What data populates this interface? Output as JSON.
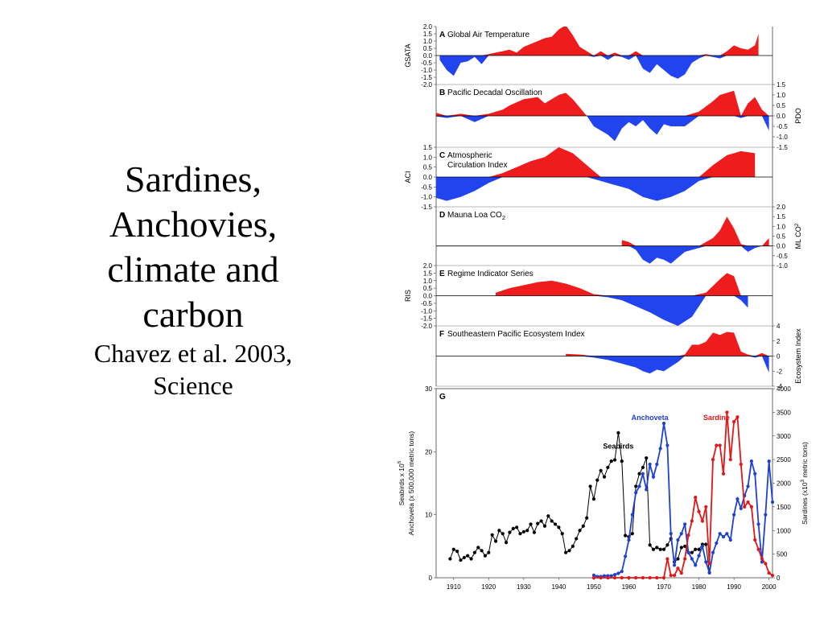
{
  "slide": {
    "title_lines": [
      "Sardines,",
      "Anchovies,",
      "climate and",
      "carbon"
    ],
    "citation_lines": [
      "Chavez et al. 2003,",
      "Science"
    ]
  },
  "colors": {
    "positive": "#ee1c1c",
    "negative": "#2244ee",
    "seabirds": "#000000",
    "anchoveta": "#2040d0",
    "sardine": "#e01818"
  },
  "chart_data": [
    {
      "type": "area",
      "panel": "A",
      "title": "Global Air Temperature",
      "ylabel": "GSATA",
      "ylim": [
        -2.0,
        2.0
      ],
      "yticks": [
        "2.0",
        "1.5",
        "1.0",
        "0.5",
        "0.0",
        "-0.5",
        "-1.0",
        "-1.5",
        "-2.0"
      ],
      "axis_side": "left",
      "x": [
        1906,
        1908,
        1910,
        1912,
        1914,
        1916,
        1918,
        1920,
        1922,
        1924,
        1926,
        1928,
        1930,
        1932,
        1934,
        1936,
        1938,
        1940,
        1942,
        1944,
        1946,
        1948,
        1950,
        1952,
        1954,
        1956,
        1958,
        1960,
        1962,
        1964,
        1966,
        1968,
        1970,
        1972,
        1974,
        1976,
        1978,
        1980,
        1982,
        1984,
        1986,
        1988,
        1990,
        1992,
        1994,
        1996,
        1997
      ],
      "values": [
        -0.3,
        -1.0,
        -1.4,
        -0.5,
        -0.4,
        -0.1,
        -0.6,
        0.1,
        0.2,
        0.3,
        0.4,
        0.2,
        0.6,
        0.8,
        1.0,
        1.2,
        1.3,
        1.8,
        2.1,
        1.4,
        0.6,
        0.3,
        -0.1,
        0.3,
        -0.3,
        0.2,
        -0.1,
        -0.3,
        0.3,
        -0.9,
        -1.2,
        -0.6,
        -1.0,
        -1.4,
        -1.6,
        -1.3,
        -0.5,
        -0.2,
        0.1,
        -0.1,
        -0.2,
        0.3,
        0.7,
        0.5,
        0.4,
        0.7,
        1.5
      ]
    },
    {
      "type": "area",
      "panel": "B",
      "title": "Pacific Decadal Oscillation",
      "ylabel": "PDO",
      "ylim": [
        -1.5,
        1.5
      ],
      "yticks": [
        "1.5",
        "1.0",
        "0.5",
        "0.0",
        "-0.5",
        "-1.0",
        "-1.5"
      ],
      "axis_side": "right",
      "x": [
        1900,
        1904,
        1908,
        1912,
        1916,
        1920,
        1924,
        1926,
        1930,
        1934,
        1936,
        1940,
        1942,
        1944,
        1946,
        1948,
        1950,
        1954,
        1956,
        1958,
        1960,
        1962,
        1964,
        1966,
        1968,
        1970,
        1972,
        1976,
        1980,
        1984,
        1986,
        1988,
        1990,
        1992,
        1994,
        1996,
        1998,
        2000
      ],
      "values": [
        0.3,
        0.2,
        -0.1,
        0.1,
        -0.3,
        0.1,
        0.3,
        0.5,
        0.8,
        0.9,
        0.6,
        1.0,
        1.1,
        0.8,
        0.4,
        0.0,
        -0.5,
        -0.9,
        -1.2,
        -0.6,
        -0.3,
        -0.5,
        -0.2,
        -0.6,
        -0.9,
        -0.4,
        -0.5,
        -0.5,
        0.2,
        0.7,
        1.0,
        1.1,
        1.2,
        -0.1,
        0.6,
        0.9,
        0.3,
        -0.7
      ]
    },
    {
      "type": "area",
      "panel": "C",
      "title": "Atmospheric Circulation Index",
      "title_lines": [
        "Atmospheric",
        "Circulation Index"
      ],
      "ylabel": "ACI",
      "ylim": [
        -1.5,
        1.5
      ],
      "yticks": [
        "1.5",
        "1.0",
        "0.5",
        "0.0",
        "-0.5",
        "-1.0",
        "-1.5"
      ],
      "axis_side": "left",
      "x": [
        1900,
        1904,
        1908,
        1912,
        1916,
        1920,
        1924,
        1928,
        1932,
        1936,
        1940,
        1944,
        1948,
        1952,
        1956,
        1960,
        1964,
        1968,
        1972,
        1976,
        1980,
        1984,
        1988,
        1992,
        1996
      ],
      "values": [
        -1.2,
        -1.0,
        -1.2,
        -1.0,
        -0.7,
        -0.3,
        0.2,
        0.5,
        0.8,
        1.0,
        1.5,
        1.2,
        0.6,
        -0.2,
        -0.4,
        -0.6,
        -1.0,
        -1.2,
        -1.0,
        -0.7,
        -0.2,
        0.6,
        1.1,
        1.3,
        1.2
      ]
    },
    {
      "type": "area",
      "panel": "D",
      "title": "Mauna Loa CO",
      "title_subscript": "2",
      "ylabel": "ML CO",
      "ylabel_subscript": "2",
      "ylim": [
        -1.0,
        2.0
      ],
      "yticks": [
        "2.0",
        "1.5",
        "1.0",
        "0.5",
        "0.0",
        "-0.5",
        "-1.0"
      ],
      "axis_side": "right",
      "x": [
        1958,
        1960,
        1962,
        1964,
        1966,
        1968,
        1970,
        1972,
        1974,
        1976,
        1978,
        1980,
        1982,
        1984,
        1986,
        1988,
        1990,
        1992,
        1994,
        1996,
        1998,
        2000
      ],
      "values": [
        0.3,
        0.2,
        -0.2,
        -0.7,
        -0.9,
        -0.6,
        -0.7,
        -0.9,
        -0.6,
        -0.3,
        -0.2,
        -0.1,
        0.2,
        0.4,
        0.8,
        1.5,
        0.9,
        0.1,
        -0.3,
        -0.1,
        0.0,
        0.4
      ]
    },
    {
      "type": "area",
      "panel": "E",
      "title": "Regime Indicator Series",
      "ylabel": "RIS",
      "ylim": [
        -2.0,
        2.0
      ],
      "yticks": [
        "2.0",
        "1.5",
        "1.0",
        "0.5",
        "0.0",
        "-0.5",
        "-1.0",
        "-1.5",
        "-2.0"
      ],
      "axis_side": "left",
      "x": [
        1922,
        1926,
        1930,
        1934,
        1938,
        1942,
        1946,
        1950,
        1954,
        1958,
        1962,
        1966,
        1970,
        1974,
        1978,
        1982,
        1986,
        1988,
        1990,
        1992,
        1994
      ],
      "values": [
        0.2,
        0.5,
        0.7,
        0.9,
        1.0,
        0.8,
        0.5,
        0.1,
        -0.1,
        -0.3,
        -0.7,
        -1.1,
        -1.6,
        -2.0,
        -1.4,
        0.2,
        1.1,
        1.5,
        1.3,
        -0.3,
        -0.8
      ]
    },
    {
      "type": "area",
      "panel": "F",
      "title": "Southeastern Pacific Ecosystem Index",
      "ylabel": "Ecosystem Index",
      "ylim": [
        -4,
        4
      ],
      "yticks": [
        "4",
        "2",
        "0",
        "-2",
        "-4"
      ],
      "axis_side": "right",
      "x": [
        1942,
        1946,
        1950,
        1954,
        1958,
        1962,
        1964,
        1966,
        1968,
        1970,
        1972,
        1974,
        1976,
        1978,
        1980,
        1982,
        1984,
        1986,
        1988,
        1990,
        1992,
        1994,
        1996,
        1998,
        2000
      ],
      "values": [
        0.3,
        0.2,
        -0.2,
        -0.5,
        -1.0,
        -1.5,
        -2.0,
        -2.3,
        -1.8,
        -2.0,
        -1.4,
        -0.8,
        0.2,
        1.5,
        1.5,
        1.9,
        3.1,
        2.8,
        3.2,
        3.1,
        0.6,
        0.2,
        -0.2,
        0.4,
        -2.2
      ]
    },
    {
      "type": "line",
      "panel": "G",
      "xlim": [
        1905,
        2001
      ],
      "xticks": [
        1910,
        1920,
        1930,
        1940,
        1950,
        1960,
        1970,
        1980,
        1990,
        2000
      ],
      "ylabel_left": [
        "Seabirds x 10",
        "Anchoveta (x 500,000 metric tons)"
      ],
      "ylabel_left_superscript": "6",
      "ylabel_right_prefix": "Sardines (x10",
      "ylabel_right_superscript": "3",
      "ylabel_right_suffix": " metric tons)",
      "ylim_left": [
        0,
        30
      ],
      "yticks_left": [
        0,
        10,
        20,
        30
      ],
      "ylim_right": [
        0,
        4000
      ],
      "yticks_right": [
        0,
        500,
        1000,
        1500,
        2000,
        2500,
        3000,
        3500,
        4000
      ],
      "series": [
        {
          "name": "Seabirds",
          "axis": "left",
          "color": "#000000",
          "x": [
            1909,
            1910,
            1911,
            1912,
            1913,
            1914,
            1915,
            1916,
            1917,
            1918,
            1919,
            1920,
            1921,
            1922,
            1923,
            1924,
            1925,
            1926,
            1927,
            1928,
            1929,
            1930,
            1931,
            1932,
            1933,
            1934,
            1935,
            1936,
            1937,
            1938,
            1939,
            1940,
            1941,
            1942,
            1943,
            1944,
            1945,
            1946,
            1947,
            1948,
            1949,
            1950,
            1951,
            1952,
            1953,
            1954,
            1955,
            1956,
            1957,
            1958,
            1959,
            1960,
            1961,
            1962,
            1963,
            1964,
            1965,
            1966,
            1967,
            1968,
            1969,
            1970,
            1971,
            1972,
            1973,
            1974,
            1975,
            1976,
            1977,
            1978,
            1979,
            1980,
            1981,
            1982,
            1983
          ],
          "values": [
            3.0,
            4.5,
            4.2,
            2.8,
            3.2,
            3.5,
            3.0,
            4.0,
            4.8,
            4.3,
            3.5,
            4.0,
            6.8,
            5.8,
            7.5,
            7.0,
            5.6,
            7.2,
            7.8,
            8.0,
            7.0,
            7.3,
            7.5,
            8.5,
            7.2,
            8.6,
            9.0,
            8.2,
            9.8,
            9.0,
            8.5,
            8.0,
            7.0,
            4.0,
            4.3,
            5.0,
            6.2,
            7.5,
            8.2,
            9.5,
            14.5,
            12.5,
            15.5,
            17.0,
            16.0,
            17.5,
            18.5,
            18.7,
            23.0,
            18.5,
            6.7,
            6.5,
            7.0,
            14.5,
            16.5,
            17.5,
            19.0,
            5.2,
            4.5,
            4.8,
            4.5,
            4.5,
            5.2,
            6.2,
            2.5,
            3.0,
            4.8,
            5.0,
            4.0,
            4.0,
            4.5,
            4.5,
            5.3,
            5.3,
            0.8
          ]
        },
        {
          "name": "Anchoveta",
          "axis": "left",
          "color": "#2040d0",
          "x": [
            1950,
            1951,
            1952,
            1953,
            1954,
            1955,
            1956,
            1957,
            1958,
            1959,
            1960,
            1961,
            1962,
            1963,
            1964,
            1965,
            1966,
            1967,
            1968,
            1969,
            1970,
            1971,
            1972,
            1973,
            1974,
            1975,
            1976,
            1977,
            1978,
            1979,
            1980,
            1981,
            1982,
            1983,
            1984,
            1985,
            1986,
            1987,
            1988,
            1989,
            1990,
            1991,
            1992,
            1993,
            1994,
            1995,
            1996,
            1997,
            1998,
            1999,
            2000,
            2001
          ],
          "values": [
            0.4,
            0.2,
            0.2,
            0.3,
            0.3,
            0.3,
            0.5,
            0.7,
            1.0,
            3.4,
            6.0,
            10.0,
            13.5,
            14.5,
            16.5,
            14.0,
            18.0,
            16.0,
            18.0,
            20.5,
            24.5,
            21.0,
            7.0,
            2.0,
            6.0,
            7.0,
            8.5,
            4.0,
            3.0,
            2.0,
            3.5,
            5.0,
            2.5,
            0.8,
            4.0,
            5.5,
            7.0,
            6.5,
            7.0,
            6.0,
            10.0,
            12.5,
            11.0,
            13.0,
            14.5,
            18.5,
            16.5,
            8.5,
            2.5,
            10.0,
            18.5,
            12.0
          ]
        },
        {
          "name": "Sardine",
          "axis": "right",
          "color": "#e01818",
          "x": [
            1950,
            1952,
            1954,
            1956,
            1958,
            1960,
            1962,
            1964,
            1966,
            1968,
            1970,
            1971,
            1972,
            1973,
            1974,
            1975,
            1976,
            1977,
            1978,
            1979,
            1980,
            1981,
            1982,
            1983,
            1984,
            1985,
            1986,
            1987,
            1988,
            1989,
            1990,
            1991,
            1992,
            1993,
            1994,
            1995,
            1996,
            1997,
            1998,
            1999,
            2000,
            2001
          ],
          "values": [
            0,
            0,
            0,
            0,
            0,
            0,
            0,
            0,
            0,
            0,
            0,
            400,
            50,
            50,
            200,
            100,
            400,
            900,
            1200,
            1700,
            1400,
            1200,
            1500,
            300,
            2500,
            2800,
            2800,
            2200,
            3500,
            2500,
            3300,
            3400,
            2400,
            1500,
            1600,
            1500,
            800,
            600,
            400,
            300,
            100,
            50
          ]
        }
      ]
    }
  ]
}
